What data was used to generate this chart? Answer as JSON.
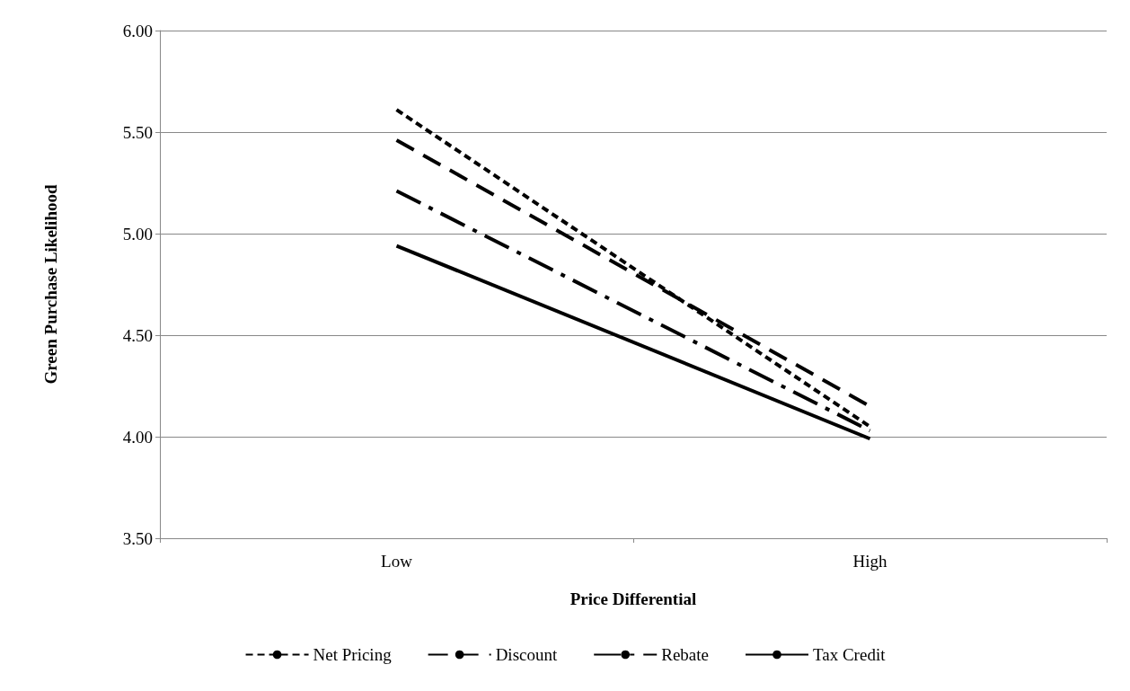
{
  "chart_data": {
    "type": "line",
    "xlabel": "Price Differential",
    "ylabel": "Green Purchase Likelihood",
    "categories": [
      "Low",
      "High"
    ],
    "series": [
      {
        "name": "Net Pricing",
        "color": "#000000",
        "values": [
          5.61,
          4.05
        ],
        "line_style": "dotted"
      },
      {
        "name": "Discount",
        "color": "#000000",
        "values": [
          5.46,
          4.15
        ],
        "line_style": "dashed"
      },
      {
        "name": "Rebate",
        "color": "#000000",
        "values": [
          5.21,
          4.03
        ],
        "line_style": "dashdot"
      },
      {
        "name": "Tax Credit",
        "color": "#000000",
        "values": [
          4.94,
          3.99
        ],
        "line_style": "solid"
      }
    ],
    "ylim": [
      3.5,
      6
    ],
    "yticks": [
      {
        "value": 3.5,
        "label": "3.50"
      },
      {
        "value": 4,
        "label": "4.00"
      },
      {
        "value": 4.5,
        "label": "4.50"
      },
      {
        "value": 5,
        "label": "5.00"
      },
      {
        "value": 5.5,
        "label": "5.50"
      },
      {
        "value": 6,
        "label": "6.00"
      }
    ],
    "grid": "y",
    "legend": "bottom",
    "marker": "none"
  }
}
